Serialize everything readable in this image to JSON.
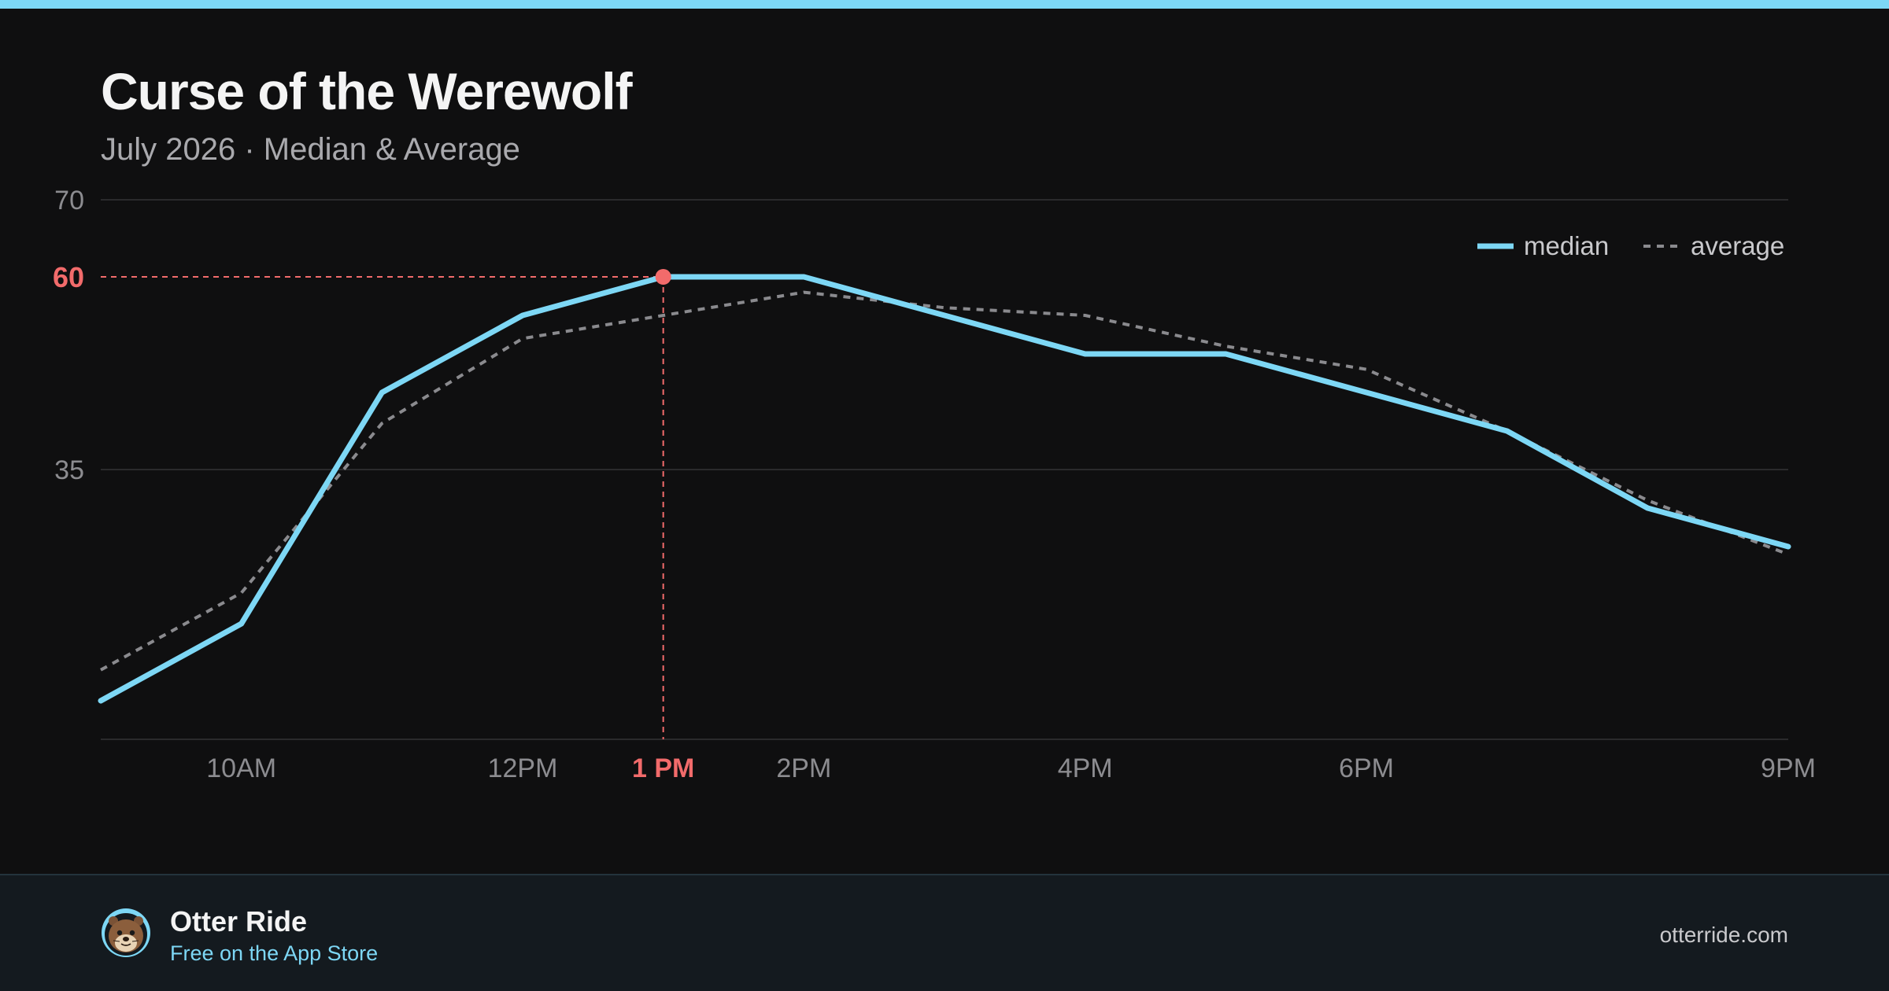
{
  "header": {
    "title": "Curse of the Werewolf",
    "subtitle": "July 2026 · Median & Average"
  },
  "colors": {
    "accent": "#7dd7f5",
    "highlight": "#f26b6b",
    "average": "#8a8a8e",
    "grid": "#2a2a2c",
    "axis_text": "#8c8c90"
  },
  "chart_data": {
    "type": "line",
    "x": [
      9,
      10,
      11,
      12,
      13,
      14,
      15,
      16,
      17,
      18,
      19,
      20,
      21
    ],
    "xlim": [
      9,
      21
    ],
    "ylim": [
      0,
      70
    ],
    "y_ticks": [
      {
        "value": 70,
        "label": "70"
      },
      {
        "value": 35,
        "label": "35"
      }
    ],
    "x_ticks": [
      {
        "value": 10,
        "label": "10AM"
      },
      {
        "value": 12,
        "label": "12PM"
      },
      {
        "value": 14,
        "label": "2PM"
      },
      {
        "value": 16,
        "label": "4PM"
      },
      {
        "value": 18,
        "label": "6PM"
      },
      {
        "value": 21,
        "label": "9PM"
      }
    ],
    "series": [
      {
        "name": "median",
        "style": "solid",
        "values": [
          5,
          15,
          45,
          55,
          60,
          60,
          55,
          50,
          50,
          45,
          40,
          30,
          25
        ]
      },
      {
        "name": "average",
        "style": "dashed",
        "values": [
          9,
          19,
          41,
          52,
          55,
          58,
          56,
          55,
          51,
          48,
          40,
          31,
          24
        ]
      }
    ],
    "highlight": {
      "x": 13,
      "y": 60,
      "x_label": "1 PM",
      "y_label": "60"
    },
    "legend": "top-right",
    "grid": true
  },
  "footer": {
    "brand_name": "Otter Ride",
    "tagline": "Free on the App Store",
    "url": "otterride.com",
    "avatar_icon": "otter-face-icon"
  }
}
